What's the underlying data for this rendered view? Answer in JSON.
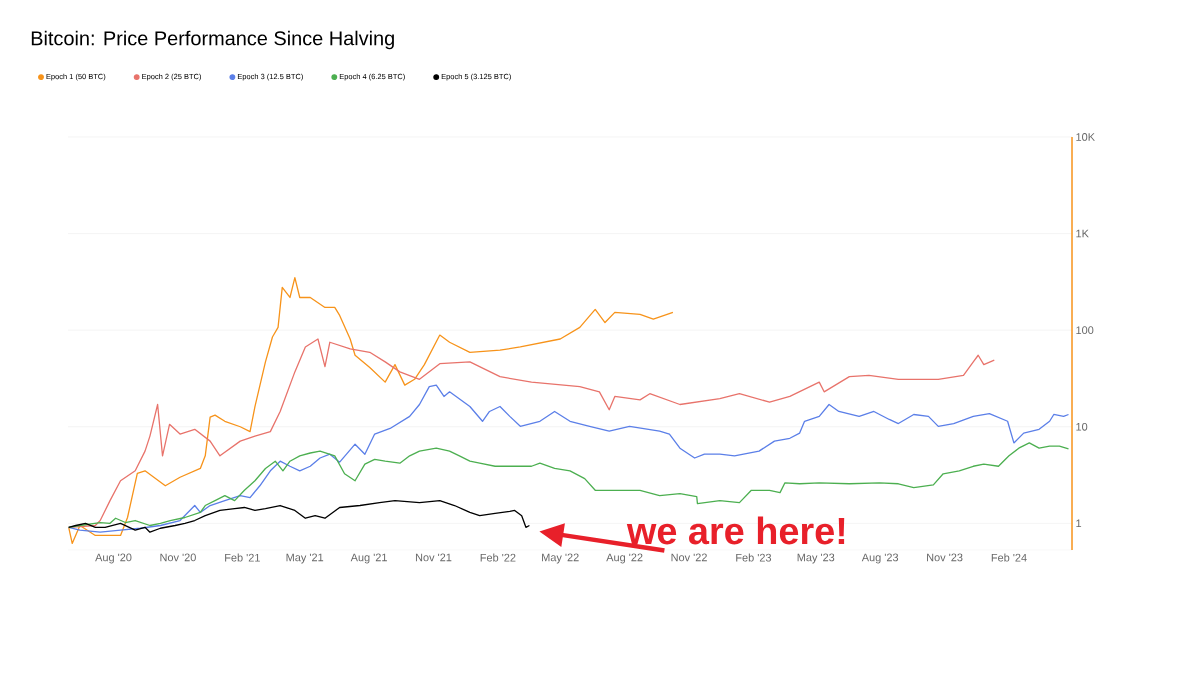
{
  "chart_data": {
    "type": "line",
    "title": "Bitcoin: Price Performance Since Halving",
    "log": "y",
    "grid": "y",
    "legend": "top left",
    "xlim": [
      "2020-05-28",
      "2024-05-01"
    ],
    "ylim": [
      0.53,
      10000
    ],
    "xticks": [
      {
        "value": "2020-08-01",
        "label": "Aug '20"
      },
      {
        "value": "2020-11-01",
        "label": "Nov '20"
      },
      {
        "value": "2021-02-01",
        "label": "Feb '21"
      },
      {
        "value": "2021-05-01",
        "label": "May '21"
      },
      {
        "value": "2021-08-01",
        "label": "Aug '21"
      },
      {
        "value": "2021-11-01",
        "label": "Nov '21"
      },
      {
        "value": "2022-02-01",
        "label": "Feb '22"
      },
      {
        "value": "2022-05-01",
        "label": "May '22"
      },
      {
        "value": "2022-08-01",
        "label": "Aug '22"
      },
      {
        "value": "2022-11-01",
        "label": "Nov '22"
      },
      {
        "value": "2023-02-01",
        "label": "Feb '23"
      },
      {
        "value": "2023-05-01",
        "label": "May '23"
      },
      {
        "value": "2023-08-01",
        "label": "Aug '23"
      },
      {
        "value": "2023-11-01",
        "label": "Nov '23"
      },
      {
        "value": "2024-02-01",
        "label": "Feb '24"
      }
    ],
    "yticks": [
      1,
      10,
      100,
      {
        "value": 1000,
        "label": "1K"
      },
      {
        "value": 10000,
        "label": "10K"
      }
    ],
    "annotations": [
      {
        "text": "we are here!",
        "x": "2022-03-18",
        "y": 0.95
      }
    ],
    "series": [
      {
        "name": "Epoch 1 (50 BTC)",
        "color": "#f7931a",
        "x": [
          "2020-05-29",
          "2020-06-03",
          "2020-06-14",
          "2020-07-06",
          "2020-08-11",
          "2020-08-21",
          "2020-09-04",
          "2020-09-15",
          "2020-10-14",
          "2020-11-04",
          "2020-12-03",
          "2020-12-10",
          "2020-12-17",
          "2020-12-24",
          "2021-01-07",
          "2021-01-29",
          "2021-02-12",
          "2021-02-19",
          "2021-03-06",
          "2021-03-16",
          "2021-03-24",
          "2021-03-30",
          "2021-04-10",
          "2021-04-17",
          "2021-04-24",
          "2021-05-09",
          "2021-05-30",
          "2021-06-13",
          "2021-06-20",
          "2021-07-05",
          "2021-07-12",
          "2021-08-02",
          "2021-08-24",
          "2021-09-07",
          "2021-09-21",
          "2021-10-05",
          "2021-10-19",
          "2021-11-10",
          "2021-11-24",
          "2021-12-23",
          "2022-02-04",
          "2022-03-05",
          "2022-05-01",
          "2022-05-29",
          "2022-06-20",
          "2022-07-04",
          "2022-07-18",
          "2022-08-23",
          "2022-09-11",
          "2022-10-09"
        ],
        "values": [
          0.91,
          0.62,
          0.95,
          0.75,
          0.75,
          1.15,
          3.3,
          3.5,
          2.45,
          3.0,
          3.7,
          5.0,
          12.6,
          13.2,
          11.4,
          10,
          8.9,
          16.2,
          47,
          85,
          107,
          277,
          218,
          350,
          218,
          218,
          172,
          172,
          142,
          81,
          55,
          41,
          29,
          44,
          27,
          31,
          44,
          89,
          75,
          59,
          62,
          67,
          81,
          107,
          164,
          120,
          153,
          146,
          130,
          153
        ]
      },
      {
        "name": "Epoch 2 (25 BTC)",
        "color": "#e8736b",
        "x": [
          "2020-05-29",
          "2020-07-06",
          "2020-07-13",
          "2020-07-27",
          "2020-08-11",
          "2020-09-01",
          "2020-09-15",
          "2020-09-22",
          "2020-10-03",
          "2020-10-10",
          "2020-10-20",
          "2020-11-04",
          "2020-11-25",
          "2020-12-17",
          "2020-12-31",
          "2021-01-29",
          "2021-02-19",
          "2021-03-13",
          "2021-03-27",
          "2021-04-17",
          "2021-05-02",
          "2021-05-20",
          "2021-05-30",
          "2021-06-06",
          "2021-07-05",
          "2021-08-02",
          "2021-08-24",
          "2021-09-14",
          "2021-10-12",
          "2021-11-10",
          "2021-12-23",
          "2022-02-04",
          "2022-03-21",
          "2022-05-29",
          "2022-06-26",
          "2022-07-10",
          "2022-07-18",
          "2022-08-23",
          "2022-09-06",
          "2022-10-19",
          "2022-12-15",
          "2023-01-12",
          "2023-02-24",
          "2023-03-25",
          "2023-05-06",
          "2023-05-13",
          "2023-06-18",
          "2023-07-16",
          "2023-08-27",
          "2023-10-23",
          "2023-11-28",
          "2023-12-12",
          "2023-12-19",
          "2023-12-27",
          "2024-01-11"
        ],
        "values": [
          0.91,
          0.95,
          1.07,
          1.72,
          2.76,
          3.5,
          5.6,
          8.0,
          17,
          5.0,
          10.6,
          8.4,
          9.4,
          7.1,
          5.0,
          7.1,
          8.0,
          8.9,
          14.4,
          37,
          67,
          81,
          42,
          75,
          64,
          59,
          47,
          37,
          31,
          45,
          47,
          33,
          29,
          26,
          23,
          15,
          20.6,
          19,
          22,
          17,
          19.6,
          22,
          18,
          20.6,
          29,
          23,
          33,
          34,
          31,
          31,
          34,
          47,
          55,
          44,
          49
        ]
      },
      {
        "name": "Epoch 3 (12.5 BTC)",
        "color": "#5b7fe8",
        "x": [
          "2020-05-29",
          "2020-06-14",
          "2020-07-13",
          "2020-08-11",
          "2020-09-08",
          "2020-10-07",
          "2020-11-04",
          "2020-11-18",
          "2020-11-25",
          "2020-12-03",
          "2020-12-17",
          "2021-01-07",
          "2021-01-29",
          "2021-02-12",
          "2021-02-26",
          "2021-03-13",
          "2021-03-27",
          "2021-04-10",
          "2021-04-24",
          "2021-05-09",
          "2021-05-23",
          "2021-06-06",
          "2021-06-20",
          "2021-07-12",
          "2021-07-26",
          "2021-08-09",
          "2021-08-31",
          "2021-09-28",
          "2021-10-12",
          "2021-10-26",
          "2021-11-05",
          "2021-11-16",
          "2021-11-24",
          "2021-12-23",
          "2022-01-10",
          "2022-01-20",
          "2022-02-04",
          "2022-02-18",
          "2022-03-05",
          "2022-04-02",
          "2022-04-23",
          "2022-05-15",
          "2022-06-12",
          "2022-07-10",
          "2022-08-08",
          "2022-09-20",
          "2022-10-04",
          "2022-10-19",
          "2022-11-09",
          "2022-11-23",
          "2022-12-15",
          "2023-01-05",
          "2023-02-09",
          "2023-03-03",
          "2023-03-25",
          "2023-04-08",
          "2023-04-15",
          "2023-05-06",
          "2023-05-20",
          "2023-06-03",
          "2023-07-02",
          "2023-07-23",
          "2023-08-14",
          "2023-08-27",
          "2023-09-18",
          "2023-10-09",
          "2023-10-23",
          "2023-11-14",
          "2023-12-12",
          "2024-01-04",
          "2024-01-30",
          "2024-02-08",
          "2024-02-22",
          "2024-03-15",
          "2024-03-30",
          "2024-04-05",
          "2024-04-19",
          "2024-04-26"
        ],
        "values": [
          0.91,
          0.85,
          0.81,
          0.85,
          0.89,
          0.95,
          1.07,
          1.36,
          1.53,
          1.3,
          1.53,
          1.72,
          1.94,
          1.85,
          2.45,
          3.5,
          4.4,
          3.9,
          3.5,
          3.9,
          4.75,
          5.2,
          4.3,
          6.6,
          5.2,
          8.4,
          9.6,
          12.8,
          17,
          26,
          27,
          20.6,
          23,
          16.2,
          11.4,
          14.4,
          16.2,
          12.8,
          10.1,
          11.4,
          14.4,
          11.4,
          10.1,
          9,
          10.1,
          9,
          8.4,
          6,
          4.75,
          5.2,
          5.2,
          5.0,
          5.6,
          7.1,
          7.6,
          8.6,
          11.4,
          12.8,
          17,
          14.4,
          12.8,
          14.4,
          11.9,
          10.8,
          13.4,
          12.8,
          10.1,
          10.8,
          12.8,
          13.7,
          11.4,
          6.8,
          8.6,
          9.4,
          11.4,
          13.4,
          12.8,
          13.4
        ]
      },
      {
        "name": "Epoch 4 (6.25 BTC)",
        "color": "#4caf50",
        "x": [
          "2020-05-29",
          "2020-06-14",
          "2020-07-13",
          "2020-07-27",
          "2020-08-04",
          "2020-08-18",
          "2020-09-01",
          "2020-09-22",
          "2020-10-07",
          "2020-10-21",
          "2020-11-11",
          "2020-12-03",
          "2020-12-10",
          "2020-12-24",
          "2021-01-07",
          "2021-01-21",
          "2021-02-04",
          "2021-02-19",
          "2021-03-06",
          "2021-03-20",
          "2021-03-31",
          "2021-04-10",
          "2021-04-24",
          "2021-05-09",
          "2021-05-23",
          "2021-06-13",
          "2021-06-27",
          "2021-07-12",
          "2021-07-26",
          "2021-08-09",
          "2021-08-24",
          "2021-09-14",
          "2021-09-28",
          "2021-10-12",
          "2021-11-05",
          "2021-11-24",
          "2021-12-08",
          "2021-12-23",
          "2022-01-06",
          "2022-01-28",
          "2022-02-18",
          "2022-03-21",
          "2022-04-02",
          "2022-04-23",
          "2022-05-15",
          "2022-06-05",
          "2022-06-20",
          "2022-07-10",
          "2022-08-23",
          "2022-09-20",
          "2022-10-19",
          "2022-11-12",
          "2022-11-13",
          "2022-12-15",
          "2023-01-12",
          "2023-01-29",
          "2023-02-24",
          "2023-03-11",
          "2023-03-18",
          "2023-04-08",
          "2023-05-06",
          "2023-06-18",
          "2023-07-31",
          "2023-08-27",
          "2023-09-18",
          "2023-10-16",
          "2023-10-30",
          "2023-11-22",
          "2023-12-12",
          "2023-12-27",
          "2024-01-17",
          "2024-02-01",
          "2024-02-15",
          "2024-03-01",
          "2024-03-15",
          "2024-03-30",
          "2024-04-13",
          "2024-04-26"
        ],
        "values": [
          0.91,
          0.95,
          1.02,
          1.0,
          1.13,
          1.02,
          1.07,
          0.95,
          1.0,
          1.07,
          1.15,
          1.3,
          1.53,
          1.72,
          1.94,
          1.72,
          2.2,
          2.76,
          3.7,
          4.4,
          3.5,
          4.4,
          5.0,
          5.35,
          5.6,
          5.0,
          3.26,
          2.76,
          4.1,
          4.6,
          4.4,
          4.2,
          5.0,
          5.6,
          6.0,
          5.6,
          5.0,
          4.4,
          4.2,
          3.9,
          3.9,
          3.9,
          4.2,
          3.7,
          3.5,
          2.9,
          2.2,
          2.2,
          2.2,
          1.94,
          2.03,
          1.89,
          1.6,
          1.72,
          1.64,
          2.2,
          2.2,
          2.08,
          2.63,
          2.57,
          2.63,
          2.57,
          2.63,
          2.57,
          2.34,
          2.5,
          3.26,
          3.5,
          3.9,
          4.1,
          3.9,
          5.0,
          6.0,
          6.8,
          6.0,
          6.3,
          6.3,
          5.9
        ]
      },
      {
        "name": "Epoch 5 (3.125 BTC)",
        "color": "#000000",
        "x": [
          "2020-05-29",
          "2020-06-08",
          "2020-06-22",
          "2020-07-06",
          "2020-07-20",
          "2020-08-11",
          "2020-09-01",
          "2020-09-15",
          "2020-09-22",
          "2020-10-07",
          "2020-10-28",
          "2020-11-11",
          "2020-11-25",
          "2020-12-10",
          "2020-12-31",
          "2021-01-21",
          "2021-02-04",
          "2021-02-19",
          "2021-03-06",
          "2021-03-27",
          "2021-04-17",
          "2021-05-02",
          "2021-05-16",
          "2021-05-30",
          "2021-06-20",
          "2021-07-19",
          "2021-08-16",
          "2021-09-07",
          "2021-10-12",
          "2021-11-10",
          "2021-12-01",
          "2021-12-23",
          "2022-01-06",
          "2022-01-28",
          "2022-02-18",
          "2022-02-25",
          "2022-03-07",
          "2022-03-13",
          "2022-03-18"
        ],
        "values": [
          0.91,
          0.95,
          1.0,
          0.91,
          0.91,
          1.0,
          0.85,
          0.91,
          0.81,
          0.89,
          0.95,
          1.0,
          1.07,
          1.2,
          1.36,
          1.42,
          1.46,
          1.36,
          1.42,
          1.53,
          1.36,
          1.13,
          1.2,
          1.13,
          1.46,
          1.53,
          1.64,
          1.72,
          1.64,
          1.72,
          1.53,
          1.3,
          1.2,
          1.27,
          1.33,
          1.36,
          1.2,
          0.91,
          0.95
        ]
      }
    ]
  }
}
